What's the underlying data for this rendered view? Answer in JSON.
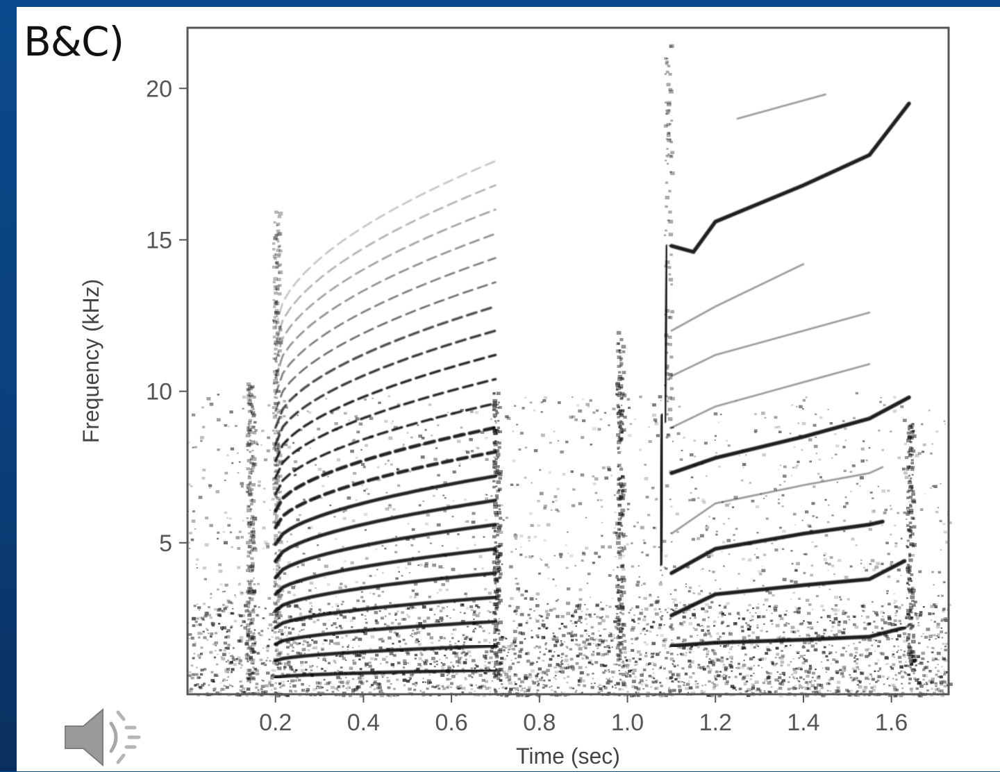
{
  "slide": {
    "panel_label": "B&C)",
    "speaker_icon": "speaker-volume-icon"
  },
  "chart_data": {
    "type": "spectrogram",
    "xlabel": "Time (sec)",
    "ylabel": "Frequency (kHz)",
    "xlim": [
      0.0,
      1.73
    ],
    "ylim": [
      0,
      22
    ],
    "x_ticks": [
      0.2,
      0.4,
      0.6,
      0.8,
      1.0,
      1.2,
      1.4,
      1.6
    ],
    "x_tick_labels": [
      "0.2",
      "0.4",
      "0.6",
      "0.8",
      "1.0",
      "1.2",
      "1.4",
      "1.6"
    ],
    "y_ticks": [
      5,
      10,
      15,
      20
    ],
    "y_tick_labels": [
      "5",
      "10",
      "15",
      "20"
    ],
    "grid": false,
    "ink_color": "#111111",
    "calls": [
      {
        "t_start": 0.2,
        "t_end": 0.7,
        "fundamental_start_khz": 0.55,
        "fundamental_end_khz": 0.8,
        "harmonics": 22
      },
      {
        "t_start": 1.1,
        "t_end": 1.64,
        "contours": [
          {
            "t": [
              1.1,
              1.2,
              1.4,
              1.55,
              1.63
            ],
            "f": [
              1.6,
              1.7,
              1.8,
              1.9,
              2.2
            ]
          },
          {
            "t": [
              1.1,
              1.2,
              1.4,
              1.55,
              1.63
            ],
            "f": [
              2.6,
              3.3,
              3.6,
              3.8,
              4.4
            ]
          },
          {
            "t": [
              1.1,
              1.2,
              1.4,
              1.55,
              1.58
            ],
            "f": [
              4.0,
              4.8,
              5.3,
              5.6,
              5.7
            ]
          },
          {
            "t": [
              1.1,
              1.2,
              1.4,
              1.55,
              1.58
            ],
            "f": [
              5.3,
              6.3,
              6.9,
              7.3,
              7.5
            ]
          },
          {
            "t": [
              1.1,
              1.2,
              1.4,
              1.55,
              1.64
            ],
            "f": [
              7.3,
              7.8,
              8.5,
              9.1,
              9.8
            ]
          },
          {
            "t": [
              1.1,
              1.2,
              1.4,
              1.55
            ],
            "f": [
              8.8,
              9.5,
              10.3,
              10.9
            ]
          },
          {
            "t": [
              1.1,
              1.2,
              1.4,
              1.55
            ],
            "f": [
              10.5,
              11.2,
              12.0,
              12.6
            ]
          },
          {
            "t": [
              1.1,
              1.2,
              1.4
            ],
            "f": [
              12.0,
              12.8,
              14.2
            ]
          },
          {
            "t": [
              1.1,
              1.15,
              1.2,
              1.4,
              1.55,
              1.64
            ],
            "f": [
              14.8,
              14.6,
              15.6,
              16.8,
              17.8,
              19.5
            ]
          },
          {
            "t": [
              1.25,
              1.45
            ],
            "f": [
              19.0,
              19.8
            ]
          }
        ]
      }
    ]
  }
}
